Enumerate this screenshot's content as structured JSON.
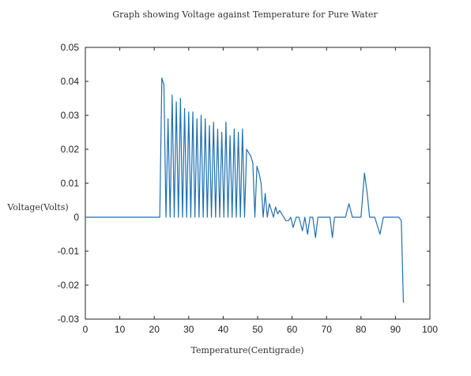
{
  "chart_data": {
    "type": "line",
    "title": "Graph showing Voltage against Temperature for Pure Water",
    "xlabel": "Temperature(Centigrade)",
    "ylabel": "Voltage(Volts)",
    "xlim": [
      0,
      100
    ],
    "ylim": [
      -0.03,
      0.05
    ],
    "xticks": [
      "0",
      "10",
      "20",
      "30",
      "40",
      "50",
      "60",
      "70",
      "80",
      "90",
      "100"
    ],
    "yticks": [
      "0.05",
      "0.04",
      "0.03",
      "0.02",
      "0.01",
      "0",
      "-0.01",
      "-0.02",
      "-0.03"
    ],
    "grid": false,
    "line_color": "#1f6fb2",
    "series": [
      {
        "x": [
          0,
          21,
          21.6,
          22.2,
          22.8,
          23.4,
          24.0,
          24.6,
          25.2,
          25.8,
          26.4,
          27.0,
          27.6,
          28.2,
          28.8,
          29.4,
          30.0,
          30.6,
          31.2,
          31.8,
          32.4,
          33.0,
          33.6,
          34.2,
          34.8,
          35.4,
          36.0,
          36.6,
          37.2,
          37.8,
          38.4,
          39.0,
          39.6,
          40.2,
          40.8,
          41.4,
          42.0,
          42.6,
          43.2,
          43.8,
          44.4,
          45.0,
          45.6,
          46.2,
          46.8,
          47.4,
          48.0,
          48.6,
          49.2,
          49.8,
          50.4,
          51.0,
          51.6,
          52.2,
          52.8,
          53.4,
          54.0,
          54.6,
          55.2,
          55.8,
          56.4,
          57.0,
          57.6,
          58.2,
          59.0,
          59.6,
          60.3,
          61.2,
          62.0,
          63.0,
          63.7,
          64.5,
          65.2,
          66.0,
          66.8,
          67.5,
          68.3,
          69.0,
          71.0,
          71.7,
          72.3,
          73.0,
          75.5,
          76.5,
          77.5,
          79.0,
          80.0,
          81.0,
          81.8,
          82.5,
          83.2,
          84.0,
          85.5,
          86.5,
          87.5,
          89.0,
          91.0,
          91.7,
          92.3,
          92.5
        ],
        "y": [
          0,
          0,
          0,
          0.041,
          0.039,
          0,
          0.029,
          0,
          0.036,
          0,
          0.034,
          0,
          0.035,
          0,
          0.032,
          0,
          0.031,
          0,
          0.031,
          0,
          0.029,
          0,
          0.03,
          0,
          0.029,
          0,
          0.027,
          0,
          0.028,
          0,
          0.026,
          0,
          0.025,
          0,
          0.028,
          0,
          0.024,
          0,
          0.026,
          0,
          0.025,
          0,
          0.026,
          0,
          0.02,
          0.019,
          0.018,
          0.016,
          0,
          0.015,
          0.013,
          0.01,
          0,
          0.007,
          0,
          0.004,
          0.002,
          0,
          0.003,
          0.001,
          0.002,
          0.001,
          0,
          -0.001,
          -0.001,
          0,
          -0.003,
          0,
          0,
          -0.004,
          0,
          -0.005,
          0,
          0,
          -0.006,
          0,
          0,
          0,
          0,
          -0.006,
          0,
          0,
          0,
          0.004,
          0,
          0,
          0,
          0.013,
          0.007,
          0,
          0,
          0,
          -0.005,
          0,
          0,
          0,
          0,
          -0.001,
          -0.025,
          -0.025
        ]
      }
    ]
  }
}
